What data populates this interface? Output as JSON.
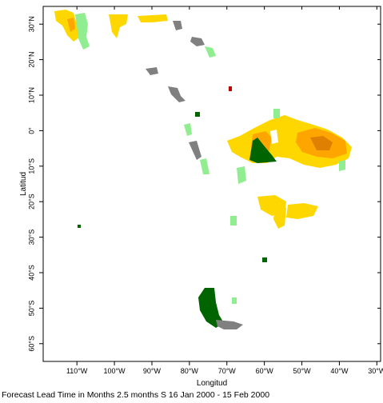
{
  "map": {
    "x_axis_title": "Longitud",
    "y_axis_title": "Latitud",
    "lon_ticks": [
      "110°W",
      "100°W",
      "90°W",
      "80°W",
      "70°W",
      "60°W",
      "50°W",
      "40°W",
      "30°W"
    ],
    "lat_ticks": [
      "30°N",
      "20°N",
      "10°N",
      "0°",
      "10°S",
      "20°S",
      "30°S",
      "40°S",
      "50°S",
      "60°S"
    ],
    "lon_range": [
      -119,
      -29
    ],
    "lat_range": [
      35,
      -65
    ],
    "colors": {
      "frame": "#000000",
      "dark_green": "#006400",
      "light_green": "#90ee90",
      "gray": "#808080",
      "yellow": "#ffd700",
      "orange": "#ffa500",
      "dark_orange": "#e08000"
    }
  },
  "caption": "Forecast Lead Time in Months 2.5 months S 16 Jan 2000 - 15 Feb 2000"
}
